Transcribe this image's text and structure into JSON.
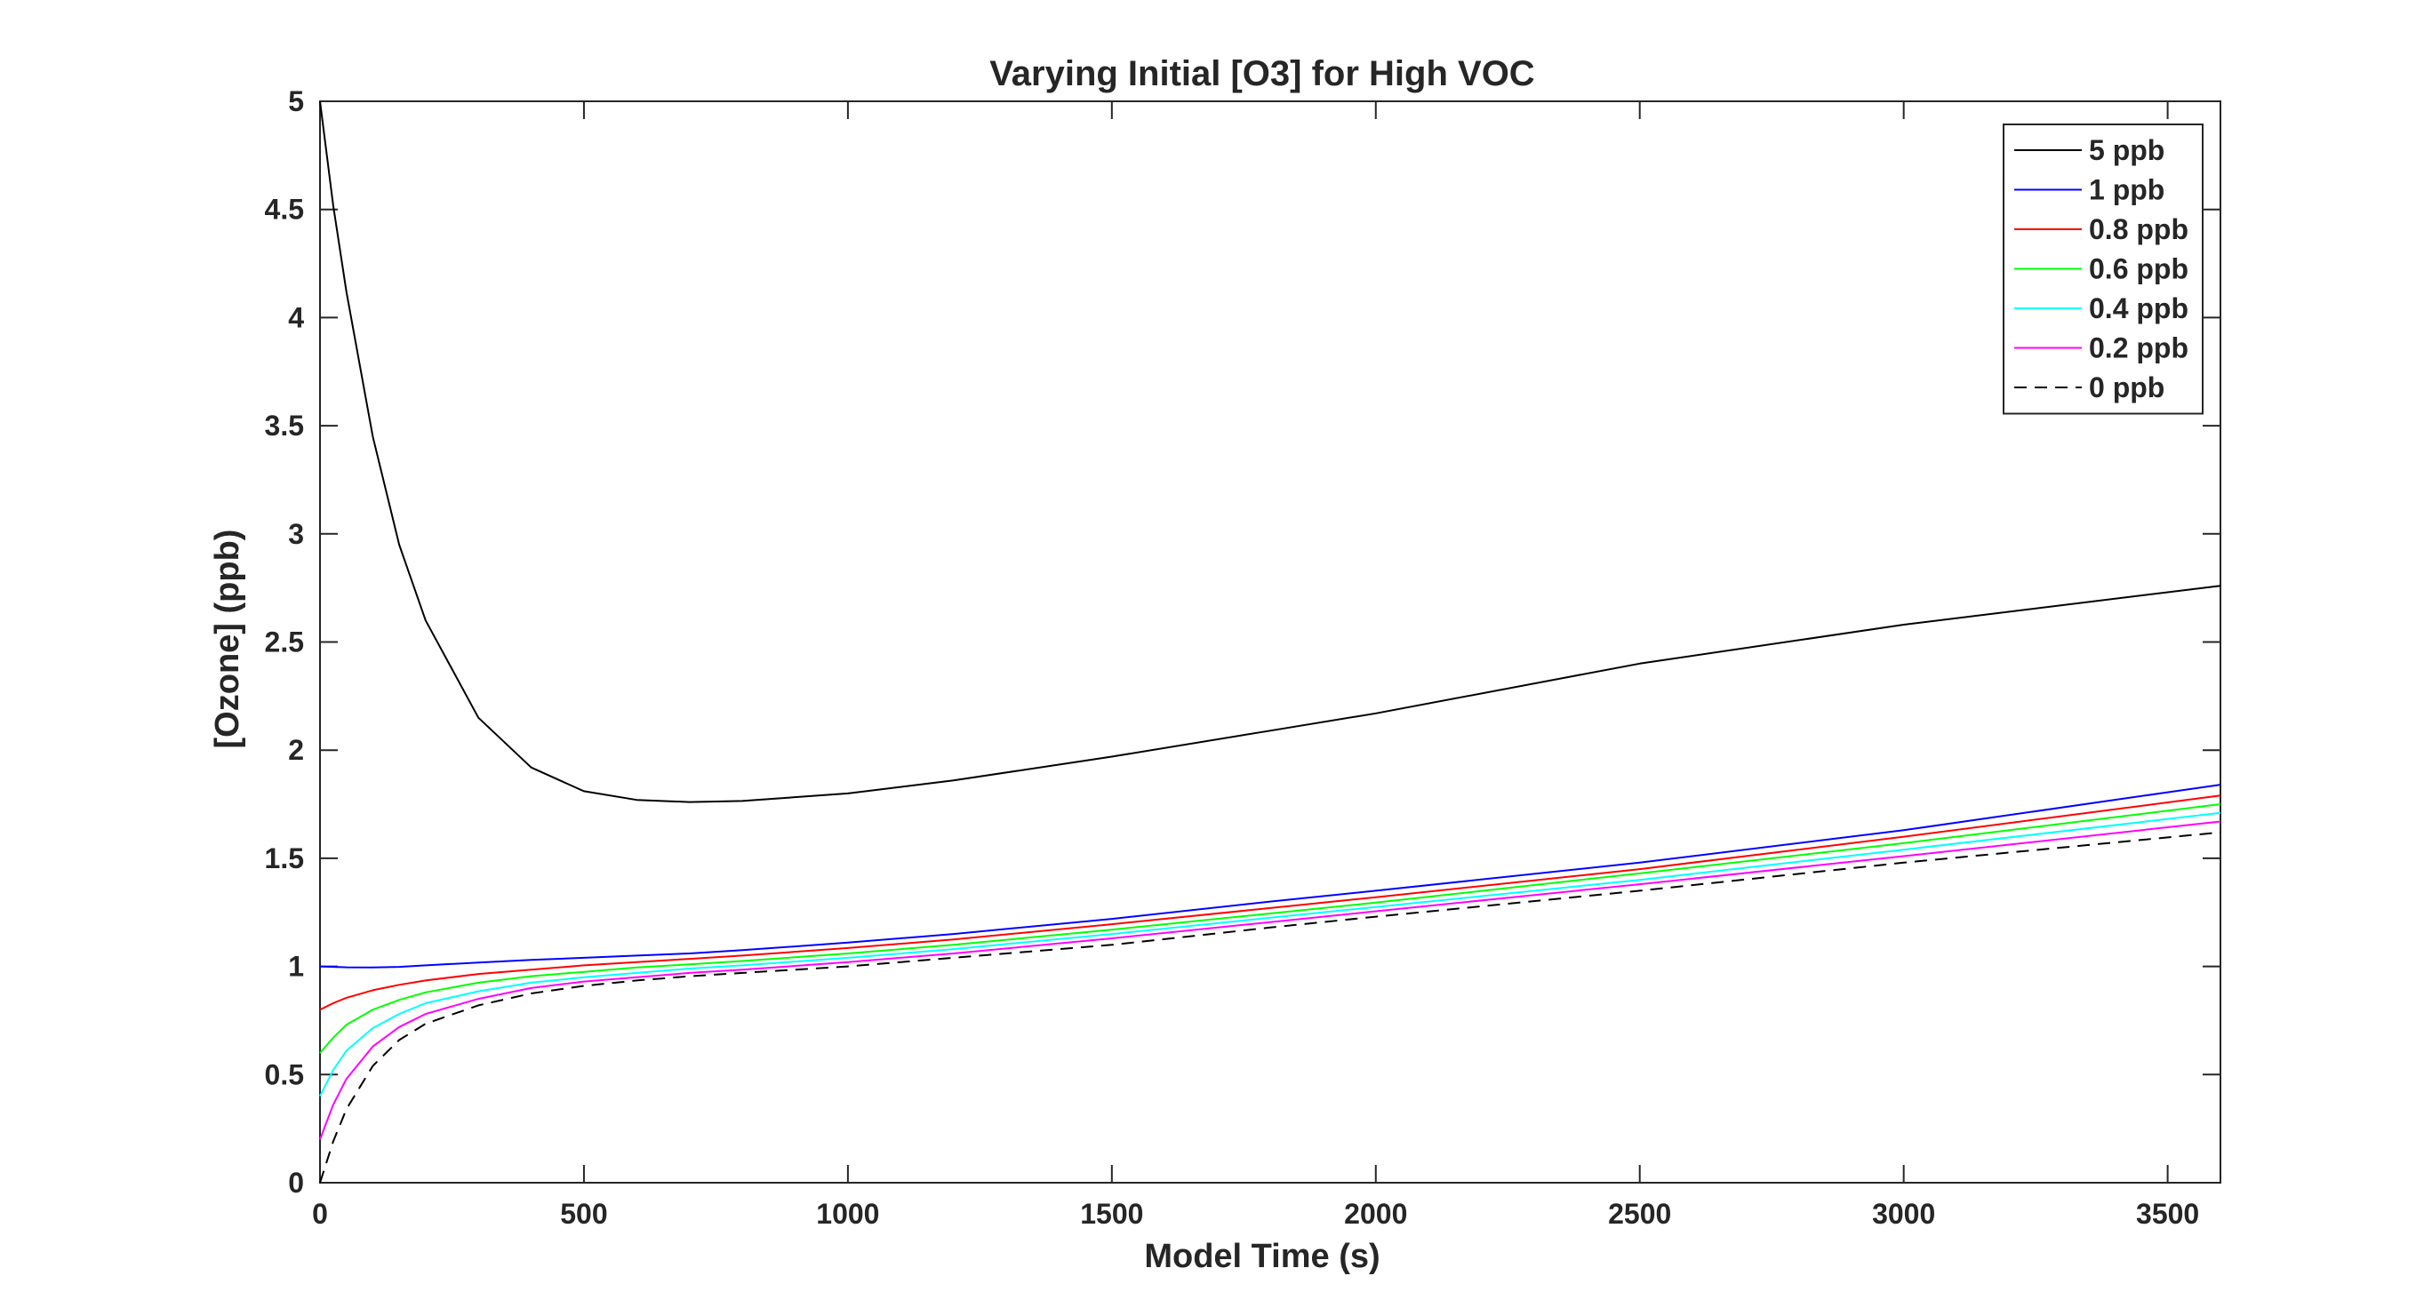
{
  "chart_data": {
    "type": "line",
    "title": "Varying Initial [O3] for High VOC",
    "xlabel": "Model Time (s)",
    "ylabel": "[Ozone] (ppb)",
    "xlim": [
      0,
      3600
    ],
    "ylim": [
      0,
      5
    ],
    "xticks": [
      0,
      500,
      1000,
      1500,
      2000,
      2500,
      3000,
      3500
    ],
    "yticks": [
      0,
      0.5,
      1,
      1.5,
      2,
      2.5,
      3,
      3.5,
      4,
      4.5,
      5
    ],
    "xtick_labels": [
      "0",
      "500",
      "1000",
      "1500",
      "2000",
      "2500",
      "3000",
      "3500"
    ],
    "ytick_labels": [
      "0",
      "0.5",
      "1",
      "1.5",
      "2",
      "2.5",
      "3",
      "3.5",
      "4",
      "4.5",
      "5"
    ],
    "grid": false,
    "legend_position": "top-right",
    "x": [
      0,
      25,
      50,
      100,
      150,
      200,
      300,
      400,
      500,
      600,
      700,
      800,
      1000,
      1200,
      1500,
      1800,
      2000,
      2500,
      3000,
      3600
    ],
    "series": [
      {
        "name": "5 ppb",
        "color": "#000000",
        "dash": "solid",
        "values": [
          5.0,
          4.52,
          4.12,
          3.45,
          2.95,
          2.6,
          2.15,
          1.92,
          1.81,
          1.77,
          1.76,
          1.765,
          1.8,
          1.86,
          1.97,
          2.09,
          2.17,
          2.4,
          2.58,
          2.76
        ]
      },
      {
        "name": "1 ppb",
        "color": "#0000ff",
        "dash": "solid",
        "values": [
          1.0,
          0.998,
          0.996,
          0.995,
          0.998,
          1.005,
          1.018,
          1.03,
          1.04,
          1.05,
          1.06,
          1.075,
          1.11,
          1.15,
          1.22,
          1.3,
          1.35,
          1.48,
          1.63,
          1.84
        ]
      },
      {
        "name": "0.8 ppb",
        "color": "#ff0000",
        "dash": "solid",
        "values": [
          0.8,
          0.83,
          0.855,
          0.89,
          0.915,
          0.935,
          0.965,
          0.985,
          1.005,
          1.02,
          1.035,
          1.05,
          1.085,
          1.125,
          1.195,
          1.27,
          1.32,
          1.45,
          1.6,
          1.79
        ]
      },
      {
        "name": "0.6 ppb",
        "color": "#00ff00",
        "dash": "solid",
        "values": [
          0.6,
          0.67,
          0.73,
          0.8,
          0.845,
          0.88,
          0.925,
          0.955,
          0.975,
          0.995,
          1.01,
          1.025,
          1.06,
          1.1,
          1.17,
          1.245,
          1.295,
          1.43,
          1.57,
          1.75
        ]
      },
      {
        "name": "0.4 ppb",
        "color": "#00ffff",
        "dash": "solid",
        "values": [
          0.4,
          0.52,
          0.61,
          0.715,
          0.78,
          0.83,
          0.885,
          0.925,
          0.95,
          0.97,
          0.99,
          1.005,
          1.04,
          1.08,
          1.15,
          1.225,
          1.275,
          1.4,
          1.54,
          1.71
        ]
      },
      {
        "name": "0.2 ppb",
        "color": "#ff00ff",
        "dash": "solid",
        "values": [
          0.2,
          0.36,
          0.48,
          0.63,
          0.72,
          0.78,
          0.85,
          0.9,
          0.93,
          0.95,
          0.97,
          0.985,
          1.02,
          1.06,
          1.13,
          1.205,
          1.255,
          1.38,
          1.51,
          1.67
        ]
      },
      {
        "name": "0 ppb",
        "color": "#000000",
        "dash": "dashed",
        "values": [
          0.0,
          0.19,
          0.34,
          0.54,
          0.66,
          0.735,
          0.82,
          0.875,
          0.91,
          0.935,
          0.955,
          0.97,
          1.0,
          1.04,
          1.1,
          1.18,
          1.23,
          1.35,
          1.48,
          1.62
        ]
      }
    ]
  }
}
